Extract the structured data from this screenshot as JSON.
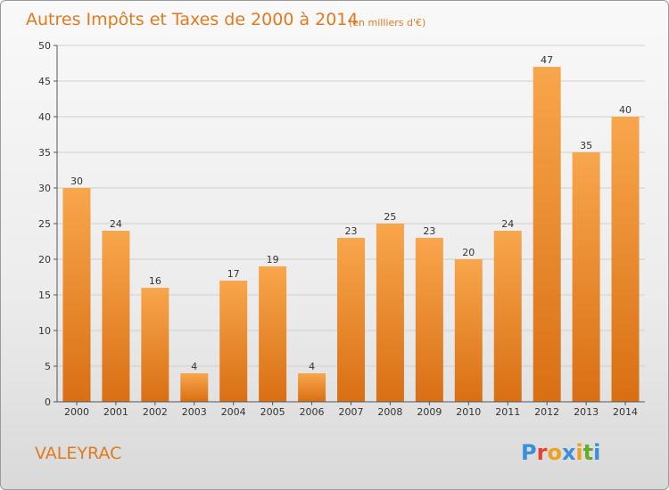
{
  "title": "Autres Impôts et Taxes de 2000 à 2014",
  "subtitle": "(en milliers d'€)",
  "commune": "VALEYRAC",
  "logo": {
    "text": "Proxiti",
    "letters": [
      "P",
      "r",
      "o",
      "x",
      "i",
      "t",
      "i"
    ],
    "colors": [
      "#3b8fd9",
      "#e8402a",
      "#f0a020",
      "#3b8fd9",
      "#f0a020",
      "#6aaa2a",
      "#3b8fd9"
    ]
  },
  "colors": {
    "accent": "#e07a20",
    "bar_top": "#f8a64c",
    "bar_bottom": "#d96f14",
    "grid": "#cfcfcf"
  },
  "chart_data": {
    "type": "bar",
    "categories": [
      "2000",
      "2001",
      "2002",
      "2003",
      "2004",
      "2005",
      "2006",
      "2007",
      "2008",
      "2009",
      "2010",
      "2011",
      "2012",
      "2013",
      "2014"
    ],
    "values": [
      30,
      24,
      16,
      4,
      17,
      19,
      4,
      23,
      25,
      23,
      20,
      24,
      47,
      35,
      40
    ],
    "yticks": [
      "0",
      "5",
      "10",
      "15",
      "20",
      "25",
      "30",
      "35",
      "40",
      "45",
      "50"
    ],
    "ylim": [
      0,
      50
    ],
    "grid": true,
    "legend": "none"
  }
}
